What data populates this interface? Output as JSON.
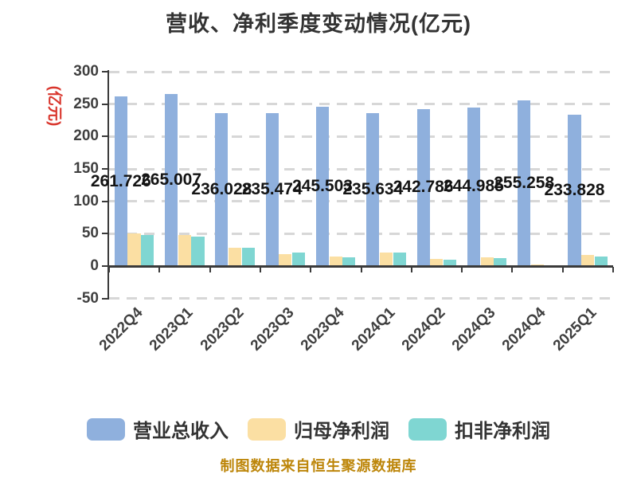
{
  "title": "营收、净利季度变动情况(亿元)",
  "y_axis": {
    "unit": "(亿元)"
  },
  "footer": "制图数据来自恒生聚源数据库",
  "colors": {
    "background": "#ffffff",
    "title_text": "#333333",
    "axis": "#3a3a3a",
    "tick_label": "#3f3f3f",
    "data_label": "#141414",
    "unit_label": "#d9352c",
    "gridline": "#d7d7d7",
    "footer_text": "#bd860a"
  },
  "chart_data": {
    "type": "bar",
    "title": "营收、净利季度变动情况(亿元)",
    "categories": [
      "2022Q4",
      "2023Q1",
      "2023Q2",
      "2023Q3",
      "2023Q4",
      "2024Q1",
      "2024Q2",
      "2024Q3",
      "2024Q4",
      "2025Q1"
    ],
    "series": [
      {
        "name": "营业总收入",
        "color": "#8fb0dd",
        "values": [
          261.726,
          265.007,
          236.028,
          235.474,
          245.503,
          235.634,
          242.786,
          244.985,
          255.258,
          233.828
        ],
        "data_labels": [
          "261.726",
          "265.007",
          "236.028",
          "235.474",
          "245.503",
          "235.634",
          "242.786",
          "244.985",
          "255.258",
          "233.828"
        ]
      },
      {
        "name": "归母净利润",
        "color": "#fbdfa3",
        "values": [
          50,
          48,
          28,
          19,
          15,
          21,
          11,
          14,
          2,
          17
        ]
      },
      {
        "name": "扣非净利润",
        "color": "#7fd6d2",
        "values": [
          48,
          45,
          28,
          21,
          14,
          21,
          10,
          12,
          1.5,
          14.5
        ]
      }
    ],
    "ylabel": "(亿元)",
    "ylim": [
      -50,
      300
    ],
    "yticks": [
      300,
      250,
      200,
      150,
      100,
      50,
      0,
      -50
    ],
    "grid": "dashed horizontal gridlines",
    "legend_position": "bottom",
    "footnote": "制图数据来自恒生聚源数据库"
  }
}
